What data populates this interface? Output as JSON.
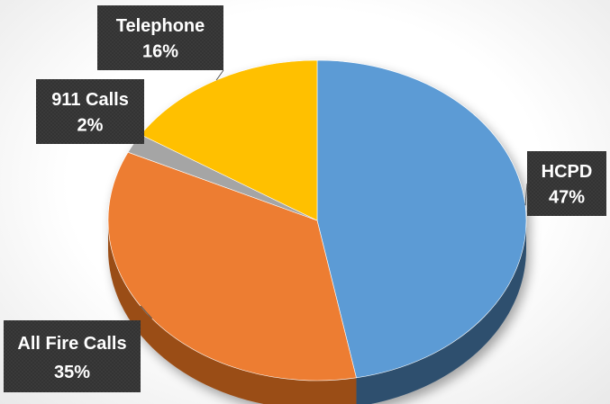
{
  "chart_data": {
    "type": "pie",
    "title": "",
    "slices": [
      {
        "label": "HCPD",
        "value": 47,
        "percent_label": "47%",
        "color": "#5b9bd5",
        "side_color": "#2e4f6e"
      },
      {
        "label": "All Fire Calls",
        "value": 35,
        "percent_label": "35%",
        "color": "#ed7d31",
        "side_color": "#9a4d17"
      },
      {
        "label": "911 Calls",
        "value": 2,
        "percent_label": "2%",
        "color": "#a5a5a5",
        "side_color": "#6b6b6b"
      },
      {
        "label": "Telephone",
        "value": 16,
        "percent_label": "16%",
        "color": "#ffc000",
        "side_color": "#a67c00"
      }
    ],
    "style": "3d-perspective",
    "label_box_color": "#3a3a3a"
  }
}
